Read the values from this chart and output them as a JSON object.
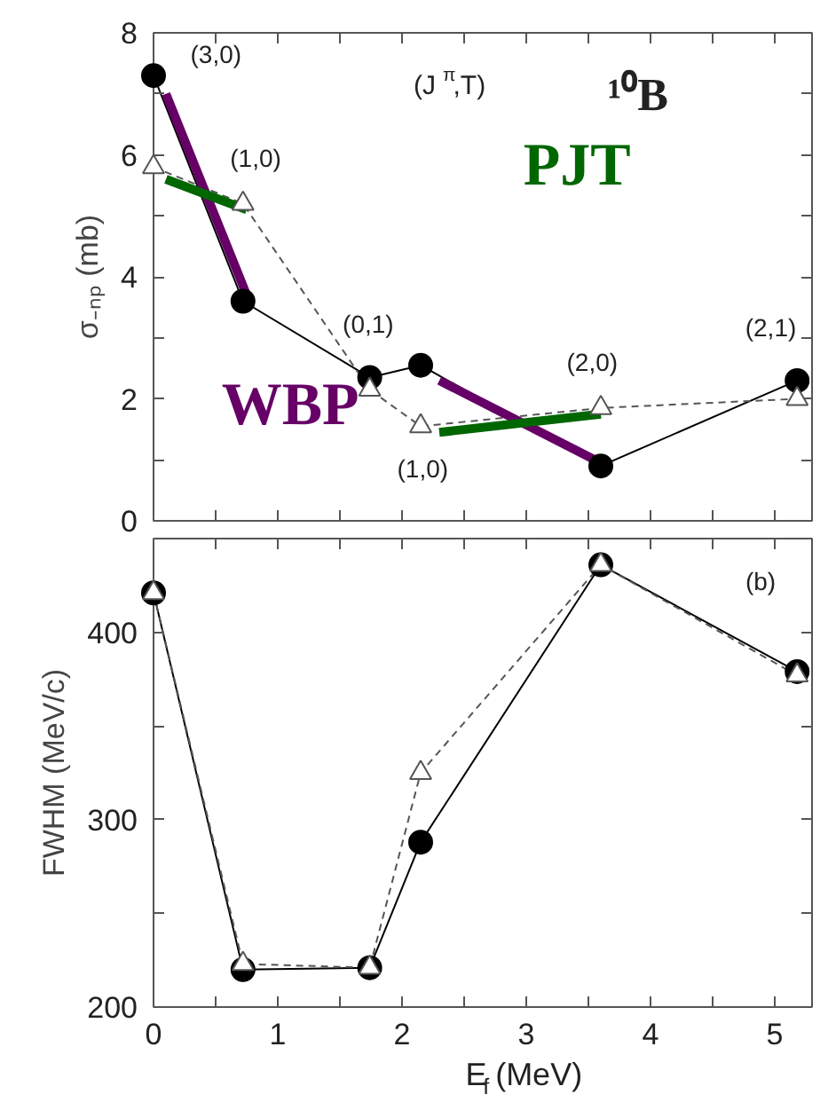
{
  "chart_data": [
    {
      "type": "line",
      "ylabel": "σ₋ₙₚ (mb)",
      "xlim": [
        0,
        5.3
      ],
      "ylim": [
        0,
        8
      ],
      "tick_labels": "y",
      "grid": false,
      "xticks": [
        0,
        {
          "value": 0.5,
          "label": null
        },
        1,
        {
          "value": 1.5,
          "label": null
        },
        2,
        {
          "value": 2.5,
          "label": null
        },
        3,
        {
          "value": 3.5,
          "label": null
        },
        4,
        {
          "value": 4.5,
          "label": null
        },
        5
      ],
      "yticks": [
        0,
        {
          "value": 1,
          "label": null
        },
        2,
        {
          "value": 3,
          "label": null
        },
        4,
        {
          "value": 5,
          "label": null
        },
        6,
        {
          "value": 7,
          "label": null
        },
        8
      ],
      "x": [
        0,
        0.72,
        1.74,
        2.15,
        3.6,
        5.18
      ],
      "series": [
        {
          "color": "#000000",
          "marker": "circle",
          "line_style": "solid",
          "values": [
            7.3,
            3.6,
            2.35,
            2.55,
            0.9,
            2.3
          ]
        },
        {
          "color": "#555555",
          "marker": "triangle",
          "line_style": "dashed",
          "values": [
            5.8,
            5.2,
            2.15,
            1.55,
            1.85,
            2.0
          ]
        },
        {
          "color": "#660066",
          "marker": "none",
          "line_style": "solid",
          "x": [
            0.1,
            0.75,
            1.5,
            2.3,
            3.6
          ],
          "values": [
            7.0,
            3.7,
            null,
            2.3,
            0.95
          ]
        },
        {
          "color": "#006600",
          "marker": "none",
          "line_style": "solid",
          "x": [
            0.1,
            0.75,
            1.5,
            2.3,
            3.6
          ],
          "values": [
            5.6,
            5.1,
            null,
            1.45,
            1.75
          ]
        }
      ],
      "annotations": [
        {
          "text": "(3,0)",
          "x": 0,
          "y": 7.3
        },
        {
          "text": "(1,0)",
          "x": 0.72,
          "y": 5.2
        },
        {
          "text": "(0,1)",
          "x": 1.74,
          "y": 2.35
        },
        {
          "text": "(1,0)",
          "x": 2.15,
          "y": 1.55
        },
        {
          "text": "(2,0)",
          "x": 3.6,
          "y": 1.85
        },
        {
          "text": "(2,1)",
          "x": 5.18,
          "y": 2.3
        },
        "(J$^{π}$,T)",
        "¹⁰B",
        "PJT",
        "WBP"
      ]
    },
    {
      "type": "line",
      "ylabel": "FWHM (MeV/c)",
      "xlabel": "E$_{f}$ (MeV)",
      "xlim": [
        0,
        5.3
      ],
      "ylim": [
        200,
        450
      ],
      "grid": false,
      "xticks": [
        0,
        {
          "value": 0.5,
          "label": null
        },
        1,
        {
          "value": 1.5,
          "label": null
        },
        2,
        {
          "value": 2.5,
          "label": null
        },
        3,
        {
          "value": 3.5,
          "label": null
        },
        4,
        {
          "value": 4.5,
          "label": null
        },
        5
      ],
      "yticks": [
        200,
        {
          "value": 250,
          "label": null
        },
        300,
        {
          "value": 350,
          "label": null
        },
        400
      ],
      "x": [
        0,
        0.72,
        1.74,
        2.15,
        3.6,
        5.18
      ],
      "series": [
        {
          "color": "#000000",
          "marker": "circle",
          "line_style": "solid",
          "values": [
            421,
            220,
            221,
            288,
            436,
            379
          ]
        },
        {
          "color": "#555555",
          "marker": "triangle",
          "line_style": "dashed",
          "values": [
            421,
            223,
            221,
            325,
            436,
            377
          ]
        }
      ],
      "annotations": [
        "(b)"
      ]
    }
  ]
}
